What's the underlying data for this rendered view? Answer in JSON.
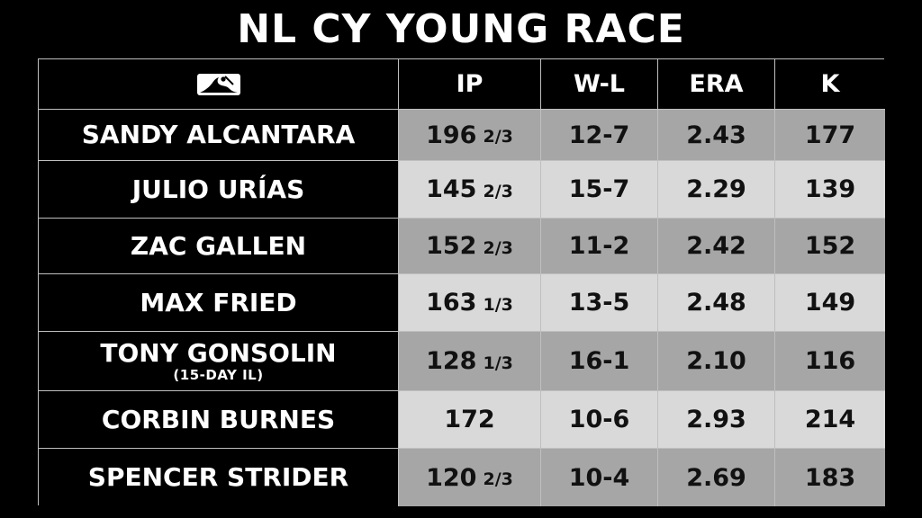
{
  "title": "NL CY YOUNG RACE",
  "brand_logo": "mlb-logo-icon",
  "colors": {
    "background": "#000000",
    "dark_cell": "#a6a6a6",
    "light_cell": "#d9d9d9",
    "text_light": "#ffffff",
    "text_dark": "#111111"
  },
  "headers": [
    "IP",
    "W-L",
    "ERA",
    "K"
  ],
  "rows": [
    {
      "name": "SANDY ALCANTARA",
      "note": "",
      "ip_whole": "196",
      "ip_frac": "2/3",
      "wl": "12-7",
      "era": "2.43",
      "k": "177"
    },
    {
      "name": "JULIO URÍAS",
      "note": "",
      "ip_whole": "145",
      "ip_frac": "2/3",
      "wl": "15-7",
      "era": "2.29",
      "k": "139"
    },
    {
      "name": "ZAC GALLEN",
      "note": "",
      "ip_whole": "152",
      "ip_frac": "2/3",
      "wl": "11-2",
      "era": "2.42",
      "k": "152"
    },
    {
      "name": "MAX FRIED",
      "note": "",
      "ip_whole": "163",
      "ip_frac": "1/3",
      "wl": "13-5",
      "era": "2.48",
      "k": "149"
    },
    {
      "name": "TONY GONSOLIN",
      "note": "(15-DAY IL)",
      "ip_whole": "128",
      "ip_frac": "1/3",
      "wl": "16-1",
      "era": "2.10",
      "k": "116"
    },
    {
      "name": "CORBIN BURNES",
      "note": "",
      "ip_whole": "172",
      "ip_frac": "",
      "wl": "10-6",
      "era": "2.93",
      "k": "214"
    },
    {
      "name": "SPENCER STRIDER",
      "note": "",
      "ip_whole": "120",
      "ip_frac": "2/3",
      "wl": "10-4",
      "era": "2.69",
      "k": "183"
    }
  ]
}
